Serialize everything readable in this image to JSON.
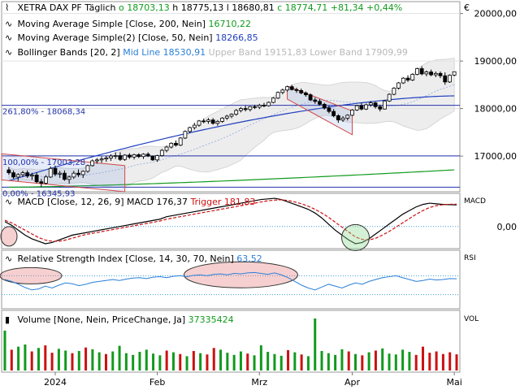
{
  "price_header": {
    "symbol": "XETRA DAX PF",
    "period": "Täglich",
    "open": "o 18703,13",
    "high": "h 18775,13",
    "low": "l 18680,81",
    "close": "c 18774,71",
    "change": "+81,34",
    "change_pct": "+0,44%"
  },
  "legend_ma200": {
    "label": "Moving Average Simple [Close, 200, Nein]",
    "value": "16710,22"
  },
  "legend_ma50": {
    "label": "Moving Average Simple(2) [Close, 50, Nein]",
    "value": "18266,85"
  },
  "legend_bb": {
    "label": "Bollinger Bands [20, 2]",
    "mid": "Mid Line 18530,91",
    "upper": "Upper Band 19151,83",
    "lower": "Lower Band 17909,99"
  },
  "currency_symbol": "€",
  "fib_labels": {
    "f261": "261,80% - 18068,34",
    "f100": "100,00% - 17003,28",
    "f0": "0,00% - 16345,93"
  },
  "macd_legend": {
    "label": "MACD [Close, 12, 26, 9]",
    "macd": "MACD 176,37",
    "trigger": "Trigger 181,83"
  },
  "rsi_legend": {
    "label": "Relative Strength Index [Close, 14, 30, 70, Nein]",
    "value": "63,52"
  },
  "vol_legend": {
    "label": "Volume [None, Nein, PriceChange, Ja]",
    "value": "37335424"
  },
  "panel_tags": {
    "macd": "MACD",
    "rsi": "RSI",
    "vol": "VOL"
  },
  "colors": {
    "up": "#129a1e",
    "down": "#cc1111",
    "ma50": "#1f3fbf",
    "ma200": "#129a1e",
    "bb": "#9fb6e0",
    "macd": "#000000",
    "trigger": "#cc1111"
  },
  "chart_data": [
    {
      "type": "candlestick",
      "title": "XETRA DAX PF",
      "y_ticks": [
        "20000,00",
        "19000,00",
        "18000,00",
        "17000,00"
      ],
      "y_tick_values": [
        20000,
        19000,
        18000,
        17000
      ],
      "ylim": [
        16250,
        20250
      ],
      "x_ticks": [
        "2024",
        "Feb",
        "Mrz",
        "Apr",
        "Mai"
      ],
      "x_tick_index": [
        10,
        32,
        54,
        74,
        96
      ],
      "ohlc": [
        [
          16710,
          16770,
          16610,
          16650
        ],
        [
          16650,
          16700,
          16520,
          16560
        ],
        [
          16560,
          16640,
          16480,
          16610
        ],
        [
          16610,
          16690,
          16560,
          16650
        ],
        [
          16650,
          16700,
          16540,
          16580
        ],
        [
          16580,
          16650,
          16500,
          16600
        ],
        [
          16600,
          16660,
          16430,
          16460
        ],
        [
          16460,
          16520,
          16350,
          16430
        ],
        [
          16430,
          16600,
          16400,
          16560
        ],
        [
          16560,
          16780,
          16540,
          16740
        ],
        [
          16740,
          16800,
          16580,
          16620
        ],
        [
          16620,
          16690,
          16540,
          16640
        ],
        [
          16640,
          16700,
          16480,
          16510
        ],
        [
          16510,
          16590,
          16420,
          16560
        ],
        [
          16560,
          16690,
          16520,
          16640
        ],
        [
          16640,
          16720,
          16560,
          16610
        ],
        [
          16610,
          16700,
          16540,
          16680
        ],
        [
          16680,
          16820,
          16650,
          16800
        ],
        [
          16800,
          16930,
          16780,
          16900
        ],
        [
          16900,
          16960,
          16840,
          16920
        ],
        [
          16920,
          16990,
          16860,
          16940
        ],
        [
          16940,
          17010,
          16880,
          16960
        ],
        [
          16960,
          17040,
          16900,
          17000
        ],
        [
          17000,
          17080,
          16940,
          17010
        ],
        [
          17010,
          17080,
          16900,
          16930
        ],
        [
          16930,
          17040,
          16900,
          17020
        ],
        [
          17020,
          17060,
          16940,
          16980
        ],
        [
          16980,
          17050,
          16930,
          17030
        ],
        [
          17030,
          17060,
          16960,
          16990
        ],
        [
          16990,
          17060,
          16940,
          17040
        ],
        [
          17040,
          17080,
          16980,
          17000
        ],
        [
          17000,
          17010,
          16900,
          16920
        ],
        [
          16920,
          17030,
          16880,
          17010
        ],
        [
          17010,
          17150,
          16990,
          17120
        ],
        [
          17120,
          17220,
          17080,
          17190
        ],
        [
          17190,
          17290,
          17160,
          17270
        ],
        [
          17270,
          17330,
          17200,
          17230
        ],
        [
          17230,
          17400,
          17210,
          17380
        ],
        [
          17380,
          17540,
          17360,
          17520
        ],
        [
          17520,
          17620,
          17480,
          17600
        ],
        [
          17600,
          17700,
          17560,
          17650
        ],
        [
          17650,
          17760,
          17620,
          17740
        ],
        [
          17740,
          17790,
          17690,
          17730
        ],
        [
          17730,
          17800,
          17680,
          17760
        ],
        [
          17760,
          17800,
          17660,
          17690
        ],
        [
          17690,
          17760,
          17640,
          17730
        ],
        [
          17730,
          17820,
          17700,
          17800
        ],
        [
          17800,
          17870,
          17760,
          17840
        ],
        [
          17840,
          17900,
          17800,
          17880
        ],
        [
          17880,
          17990,
          17850,
          17960
        ],
        [
          17960,
          18030,
          17920,
          18000
        ],
        [
          18000,
          18060,
          17940,
          17980
        ],
        [
          17980,
          18050,
          17940,
          18040
        ],
        [
          18040,
          18080,
          17990,
          18030
        ],
        [
          18030,
          18100,
          17990,
          18070
        ],
        [
          18070,
          18120,
          18030,
          18060
        ],
        [
          18060,
          18150,
          18040,
          18130
        ],
        [
          18130,
          18240,
          18110,
          18220
        ],
        [
          18220,
          18360,
          18200,
          18340
        ],
        [
          18340,
          18420,
          18300,
          18390
        ],
        [
          18390,
          18480,
          18360,
          18460
        ],
        [
          18460,
          18500,
          18380,
          18400
        ],
        [
          18400,
          18440,
          18330,
          18380
        ],
        [
          18380,
          18420,
          18300,
          18330
        ],
        [
          18330,
          18360,
          18250,
          18290
        ],
        [
          18290,
          18320,
          18160,
          18180
        ],
        [
          18180,
          18230,
          18100,
          18150
        ],
        [
          18150,
          18200,
          18060,
          18090
        ],
        [
          18090,
          18120,
          17980,
          18010
        ],
        [
          18010,
          18060,
          17900,
          17940
        ],
        [
          17940,
          17990,
          17820,
          17850
        ],
        [
          17850,
          17880,
          17700,
          17760
        ],
        [
          17760,
          17840,
          17720,
          17800
        ],
        [
          17800,
          17880,
          17750,
          17860
        ],
        [
          17860,
          17990,
          17840,
          17970
        ],
        [
          17970,
          18080,
          17950,
          18060
        ],
        [
          18060,
          18120,
          17960,
          17990
        ],
        [
          17990,
          18100,
          17970,
          18080
        ],
        [
          18080,
          18160,
          18040,
          18120
        ],
        [
          18120,
          18140,
          18000,
          18040
        ],
        [
          18040,
          18080,
          17940,
          17990
        ],
        [
          17990,
          18180,
          17980,
          18160
        ],
        [
          18160,
          18320,
          18140,
          18300
        ],
        [
          18300,
          18450,
          18280,
          18430
        ],
        [
          18430,
          18560,
          18400,
          18540
        ],
        [
          18540,
          18660,
          18520,
          18640
        ],
        [
          18640,
          18700,
          18560,
          18600
        ],
        [
          18600,
          18740,
          18580,
          18720
        ],
        [
          18720,
          18860,
          18700,
          18840
        ],
        [
          18840,
          18890,
          18700,
          18730
        ],
        [
          18730,
          18800,
          18680,
          18770
        ],
        [
          18770,
          18820,
          18680,
          18710
        ],
        [
          18710,
          18780,
          18660,
          18740
        ],
        [
          18740,
          18780,
          18640,
          18690
        ],
        [
          18690,
          18760,
          18500,
          18560
        ],
        [
          18560,
          18720,
          18540,
          18700
        ],
        [
          18703.13,
          18775.13,
          18680.81,
          18774.71
        ]
      ],
      "overlays": {
        "ma200_start_end": [
          16345,
          16710.22
        ],
        "ma50_start_end": [
          16480,
          18266.85
        ],
        "bb_mid_last": 18530.91,
        "bb_upper_last": 19151.83,
        "bb_lower_last": 17909.99
      },
      "fib_levels": [
        18068.34,
        17003.28,
        16345.93
      ]
    },
    {
      "type": "line",
      "title": "MACD",
      "y_ticks": [
        "0,00"
      ],
      "series": [
        {
          "name": "MACD",
          "values": [
            40,
            10,
            -30,
            -70,
            -100,
            -120,
            -140,
            -130,
            -110,
            -90,
            -70,
            -60,
            -50,
            -40,
            -30,
            -20,
            -10,
            0,
            10,
            20,
            30,
            40,
            50,
            60,
            80,
            90,
            100,
            110,
            120,
            130,
            140,
            150,
            160,
            170,
            180,
            190,
            200,
            210,
            220,
            225,
            230,
            220,
            200,
            180,
            160,
            140,
            110,
            70,
            20,
            -30,
            -70,
            -110,
            -140,
            -130,
            -100,
            -60,
            -20,
            20,
            60,
            100,
            130,
            160,
            180,
            190,
            185,
            180,
            178,
            176.37
          ]
        },
        {
          "name": "Trigger",
          "values": [
            50,
            30,
            0,
            -30,
            -60,
            -90,
            -110,
            -120,
            -120,
            -110,
            -95,
            -80,
            -65,
            -55,
            -45,
            -35,
            -25,
            -15,
            -5,
            5,
            15,
            25,
            35,
            45,
            60,
            70,
            80,
            90,
            100,
            110,
            120,
            130,
            140,
            150,
            160,
            170,
            180,
            190,
            200,
            210,
            215,
            218,
            212,
            200,
            185,
            165,
            140,
            110,
            75,
            35,
            -5,
            -45,
            -85,
            -105,
            -110,
            -95,
            -70,
            -40,
            -5,
            30,
            65,
            100,
            130,
            155,
            170,
            178,
            181,
            181.83
          ]
        }
      ]
    },
    {
      "type": "line",
      "title": "Relative Strength Index",
      "series": [
        {
          "name": "RSI",
          "values": [
            62,
            58,
            52,
            45,
            40,
            42,
            48,
            44,
            50,
            55,
            53,
            49,
            52,
            56,
            58,
            60,
            62,
            60,
            63,
            65,
            66,
            64,
            67,
            68,
            66,
            69,
            70,
            68,
            71,
            72,
            70,
            73,
            74,
            72,
            75,
            74,
            76,
            77,
            75,
            73,
            76,
            72,
            66,
            58,
            50,
            44,
            40,
            46,
            52,
            48,
            44,
            50,
            55,
            52,
            58,
            62,
            66,
            68,
            70,
            66,
            62,
            58,
            60,
            63,
            61,
            62,
            64,
            63.52
          ]
        }
      ],
      "levels": [
        30,
        70
      ]
    },
    {
      "type": "bar",
      "title": "Volume",
      "series": [
        {
          "name": "Volume",
          "values": [
            92,
            48,
            55,
            60,
            44,
            52,
            58,
            41,
            50,
            46,
            40,
            45,
            53,
            49,
            42,
            38,
            44,
            57,
            40,
            36,
            43,
            48,
            39,
            35,
            46,
            42,
            38,
            33,
            45,
            40,
            37,
            52,
            48,
            41,
            36,
            44,
            39,
            35,
            58,
            43,
            38,
            34,
            47,
            42,
            37,
            33,
            120,
            45,
            40,
            36,
            49,
            44,
            38,
            35,
            42,
            46,
            51,
            39,
            37,
            48,
            43,
            36,
            55,
            41,
            44,
            38,
            42,
            37.3
          ]
        }
      ]
    }
  ]
}
